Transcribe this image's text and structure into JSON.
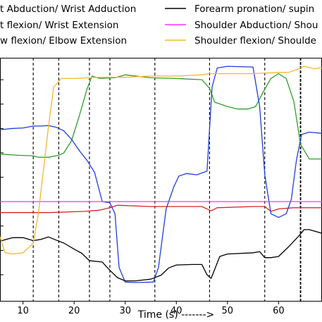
{
  "chart_data": {
    "type": "line",
    "xlabel": "Time (s) ------->",
    "ylabel": "",
    "xlim": [
      5.5,
      68.5
    ],
    "ylim": [
      0,
      1
    ],
    "xticks": [
      10,
      20,
      30,
      40,
      50,
      60
    ],
    "grid": "off",
    "legend_position": "top (two columns, partially cropped)",
    "legend": [
      {
        "label": "t Abduction/ Wrist Adduction",
        "color": "#d62728"
      },
      {
        "label": "t flexion/ Wrist Extension",
        "color": "#2ca02c"
      },
      {
        "label": "w flexion/ Elbow Extension",
        "color": "#1f3fd9"
      },
      {
        "label": "Forearm pronation/ supin",
        "color": "#000000"
      },
      {
        "label": "Shoulder Abduction/ Shou",
        "color": "#ff33ff"
      },
      {
        "label": "Shoulder flexion/ Shoulde",
        "color": "#f5b731"
      }
    ],
    "vlines": [
      {
        "x": 12.0,
        "style": "dashed"
      },
      {
        "x": 17.0,
        "style": "dashed"
      },
      {
        "x": 23.0,
        "style": "dashed"
      },
      {
        "x": 27.0,
        "style": "dashed"
      },
      {
        "x": 35.8,
        "style": "dashed"
      },
      {
        "x": 46.5,
        "style": "dashed"
      },
      {
        "x": 57.3,
        "style": "dashed"
      },
      {
        "x": 64.3,
        "style": "dashed-bold"
      }
    ],
    "series": [
      {
        "name": "t Abduction/ Wrist Adduction",
        "color": "#d62728",
        "x": [
          5.5,
          15,
          22,
          25,
          27,
          28.5,
          35,
          40,
          45,
          46.8,
          48,
          55,
          57.3,
          58.5,
          60,
          63,
          68.5
        ],
        "y": [
          0.365,
          0.365,
          0.37,
          0.375,
          0.385,
          0.395,
          0.39,
          0.39,
          0.39,
          0.372,
          0.385,
          0.39,
          0.39,
          0.37,
          0.38,
          0.385,
          0.385
        ]
      },
      {
        "name": "t flexion/ Wrist Extension",
        "color": "#2ca02c",
        "x": [
          5.5,
          9,
          12,
          13,
          15,
          17,
          18,
          19.5,
          21,
          22.5,
          23.5,
          25,
          28,
          30,
          35,
          40,
          45,
          46.5,
          47.5,
          50,
          52,
          54,
          55.5,
          57,
          58.5,
          60,
          61.5,
          63,
          64.3,
          66,
          68.5
        ],
        "y": [
          0.605,
          0.6,
          0.598,
          0.592,
          0.592,
          0.6,
          0.61,
          0.66,
          0.76,
          0.87,
          0.925,
          0.915,
          0.918,
          0.93,
          0.918,
          0.915,
          0.91,
          0.875,
          0.818,
          0.8,
          0.79,
          0.79,
          0.8,
          0.86,
          0.915,
          0.935,
          0.915,
          0.82,
          0.645,
          0.585,
          0.585
        ]
      },
      {
        "name": "w flexion/ Elbow Extension",
        "color": "#1f3fd9",
        "x": [
          5.5,
          8,
          10,
          12,
          13.5,
          15,
          16.5,
          18,
          19.5,
          21,
          22.5,
          24,
          25.5,
          27,
          28,
          28.8,
          30,
          32,
          35.5,
          36.5,
          38,
          39.5,
          40.5,
          42,
          44,
          46,
          47,
          48,
          50,
          55,
          56.3,
          57.3,
          58.5,
          60,
          61.5,
          62.5,
          63.5,
          64.5,
          66,
          68.5
        ],
        "y": [
          0.705,
          0.71,
          0.712,
          0.72,
          0.72,
          0.722,
          0.715,
          0.7,
          0.665,
          0.62,
          0.58,
          0.53,
          0.41,
          0.405,
          0.36,
          0.14,
          0.08,
          0.078,
          0.08,
          0.14,
          0.38,
          0.47,
          0.515,
          0.525,
          0.52,
          0.535,
          0.88,
          0.958,
          0.965,
          0.962,
          0.8,
          0.52,
          0.36,
          0.345,
          0.36,
          0.42,
          0.58,
          0.685,
          0.695,
          0.69
        ]
      },
      {
        "name": "Forearm pronation/ supin",
        "color": "#000000",
        "x": [
          5.5,
          8,
          10,
          12,
          13.5,
          15,
          16.5,
          18,
          20,
          21.5,
          23,
          25.5,
          27,
          28.5,
          30,
          32,
          35,
          37,
          38.5,
          40,
          43,
          45,
          46,
          46.8,
          48.5,
          50,
          55,
          56.3,
          57.3,
          58.5,
          60,
          62,
          64,
          65,
          66,
          68.5
        ],
        "y": [
          0.248,
          0.262,
          0.262,
          0.25,
          0.255,
          0.265,
          0.252,
          0.24,
          0.215,
          0.198,
          0.168,
          0.162,
          0.128,
          0.098,
          0.085,
          0.085,
          0.092,
          0.108,
          0.138,
          0.15,
          0.152,
          0.152,
          0.11,
          0.095,
          0.185,
          0.195,
          0.2,
          0.205,
          0.18,
          0.18,
          0.185,
          0.225,
          0.27,
          0.295,
          0.295,
          0.28
        ]
      },
      {
        "name": "Shoulder Abduction/ Shou",
        "color": "#ff33ff",
        "x": [
          5.5,
          68.5
        ],
        "y": [
          0.41,
          0.41
        ]
      },
      {
        "name": "Shoulder flexion/ Shoulde",
        "color": "#f5b731",
        "x": [
          5.5,
          6.5,
          8,
          10,
          12,
          13,
          14,
          15,
          16,
          17.5,
          20,
          25,
          30,
          35,
          40,
          45,
          46.5,
          47.5,
          50,
          55,
          60,
          62,
          63,
          64,
          65,
          66,
          67,
          68.5
        ],
        "y": [
          0.265,
          0.2,
          0.195,
          0.2,
          0.24,
          0.36,
          0.54,
          0.72,
          0.88,
          0.915,
          0.915,
          0.92,
          0.92,
          0.925,
          0.925,
          0.93,
          0.935,
          0.935,
          0.935,
          0.935,
          0.94,
          0.94,
          0.948,
          0.955,
          0.965,
          0.96,
          0.955,
          0.96
        ]
      }
    ]
  }
}
